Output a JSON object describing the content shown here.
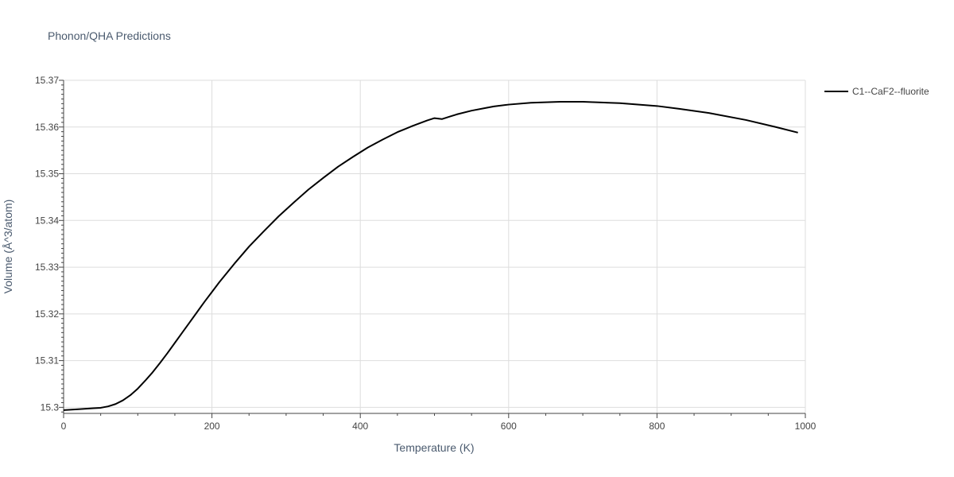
{
  "title": "Phonon/QHA Predictions",
  "chart_data": {
    "type": "line",
    "title": "Phonon/QHA Predictions",
    "xlabel": "Temperature (K)",
    "ylabel": "Volume (Å^3/atom)",
    "xlim": [
      0,
      1000
    ],
    "ylim": [
      15.2987,
      15.37
    ],
    "x_ticks": [
      0,
      200,
      400,
      600,
      800,
      1000
    ],
    "x_tick_labels": [
      "0",
      "200",
      "400",
      "600",
      "800",
      "1000"
    ],
    "y_ticks": [
      15.3,
      15.31,
      15.32,
      15.33,
      15.34,
      15.35,
      15.36,
      15.37
    ],
    "y_tick_labels": [
      "15.3",
      "15.31",
      "15.32",
      "15.33",
      "15.34",
      "15.35",
      "15.36",
      "15.37"
    ],
    "grid": true,
    "legend_position": "top-right",
    "series": [
      {
        "name": "C1--CaF2--fluorite",
        "color": "#000000",
        "x": [
          0,
          20,
          40,
          50,
          60,
          70,
          80,
          90,
          100,
          110,
          120,
          130,
          140,
          150,
          160,
          170,
          180,
          190,
          200,
          210,
          230,
          250,
          270,
          290,
          310,
          330,
          350,
          370,
          390,
          410,
          430,
          450,
          470,
          490,
          500,
          510,
          520,
          530,
          550,
          570,
          580,
          600,
          630,
          670,
          700,
          750,
          800,
          830,
          870,
          920,
          960,
          990
        ],
        "y": [
          15.2994,
          15.2996,
          15.2998,
          15.2999,
          15.3002,
          15.3007,
          15.3015,
          15.3026,
          15.304,
          15.3057,
          15.3075,
          15.3095,
          15.3116,
          15.3138,
          15.316,
          15.3182,
          15.3204,
          15.3226,
          15.3247,
          15.3268,
          15.3307,
          15.3344,
          15.3377,
          15.3409,
          15.3438,
          15.3466,
          15.3491,
          15.3515,
          15.3536,
          15.3556,
          15.3573,
          15.3589,
          15.3602,
          15.3614,
          15.3619,
          15.3617,
          15.3622,
          15.3627,
          15.3635,
          15.3641,
          15.3644,
          15.3648,
          15.3652,
          15.3654,
          15.3654,
          15.3651,
          15.3645,
          15.3639,
          15.363,
          15.3615,
          15.36,
          15.3588
        ]
      }
    ]
  }
}
